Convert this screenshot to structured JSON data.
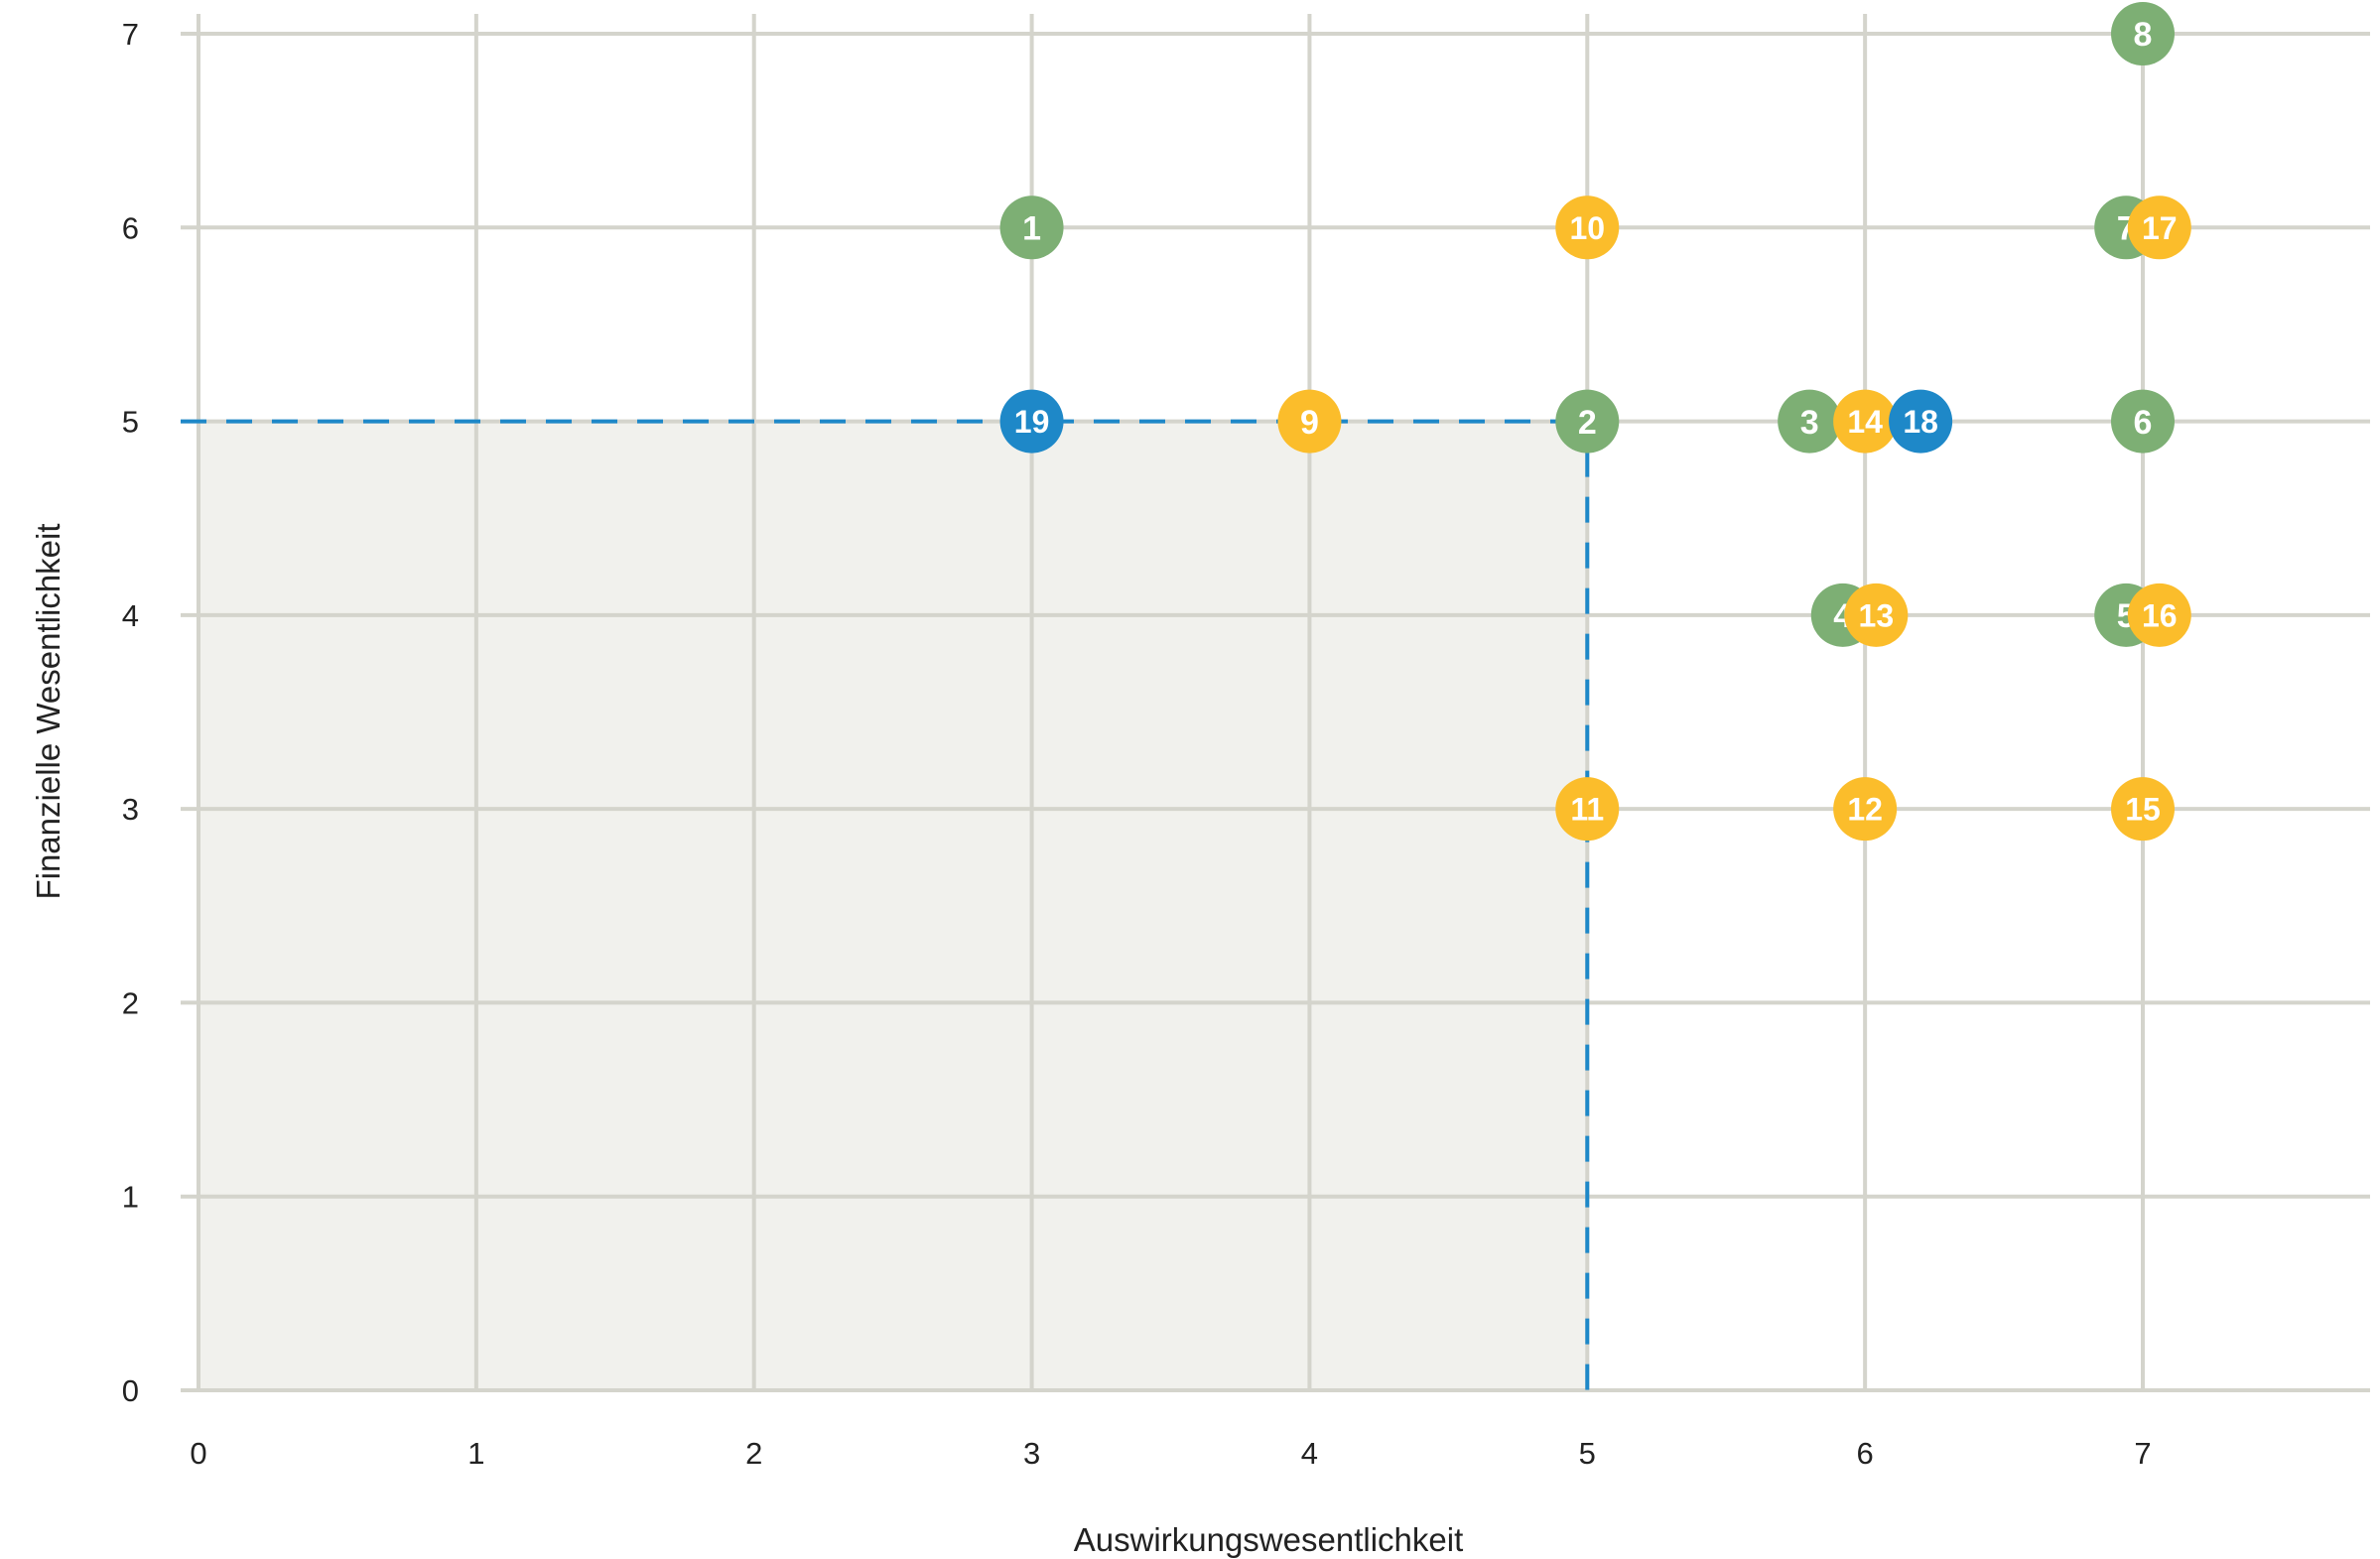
{
  "chart_data": {
    "type": "scatter",
    "xlabel": "Auswirkungswesentlichkeit",
    "ylabel": "Finanzielle Wesentlichkeit",
    "xlim": [
      0,
      7
    ],
    "ylim": [
      0,
      7
    ],
    "xticks": [
      "0",
      "1",
      "2",
      "3",
      "4",
      "5",
      "6",
      "7"
    ],
    "yticks": [
      "0",
      "1",
      "2",
      "3",
      "4",
      "5",
      "6",
      "7"
    ],
    "grid": true,
    "threshold": {
      "x": 5,
      "y": 5
    },
    "colors": {
      "green": "#7daf74",
      "yellow": "#fbbd2b",
      "blue": "#1e88c8",
      "grid": "#d4d4cc",
      "shade": "#f1f1ed",
      "threshold": "#1e88c8"
    },
    "points": [
      {
        "label": "1",
        "x": 3,
        "y": 6,
        "color": "green"
      },
      {
        "label": "2",
        "x": 5,
        "y": 5,
        "color": "green"
      },
      {
        "label": "3",
        "x": 5.8,
        "y": 5,
        "color": "green"
      },
      {
        "label": "4",
        "x": 5.92,
        "y": 4,
        "color": "green"
      },
      {
        "label": "5",
        "x": 6.94,
        "y": 4,
        "color": "green"
      },
      {
        "label": "6",
        "x": 7,
        "y": 5,
        "color": "green"
      },
      {
        "label": "7",
        "x": 6.94,
        "y": 6,
        "color": "green"
      },
      {
        "label": "8",
        "x": 7,
        "y": 7,
        "color": "green"
      },
      {
        "label": "9",
        "x": 4,
        "y": 5,
        "color": "yellow"
      },
      {
        "label": "10",
        "x": 5,
        "y": 6,
        "color": "yellow"
      },
      {
        "label": "11",
        "x": 5,
        "y": 3,
        "color": "yellow"
      },
      {
        "label": "12",
        "x": 6,
        "y": 3,
        "color": "yellow"
      },
      {
        "label": "13",
        "x": 6.04,
        "y": 4,
        "color": "yellow"
      },
      {
        "label": "14",
        "x": 6,
        "y": 5,
        "color": "yellow"
      },
      {
        "label": "15",
        "x": 7,
        "y": 3,
        "color": "yellow"
      },
      {
        "label": "16",
        "x": 7.06,
        "y": 4,
        "color": "yellow"
      },
      {
        "label": "17",
        "x": 7.06,
        "y": 6,
        "color": "yellow"
      },
      {
        "label": "18",
        "x": 6.2,
        "y": 5,
        "color": "blue"
      },
      {
        "label": "19",
        "x": 3,
        "y": 5,
        "color": "blue"
      }
    ]
  }
}
